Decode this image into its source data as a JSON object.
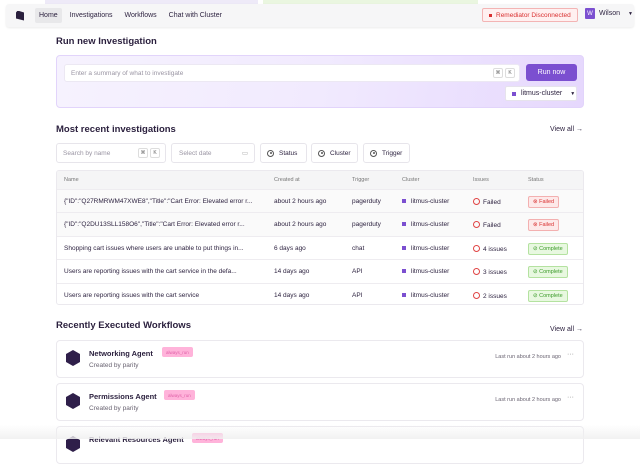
{
  "nav": {
    "items": [
      "Home",
      "Investigations",
      "Workflows",
      "Chat with Cluster"
    ],
    "active": "Home",
    "remediator_status": "Remediator Disconnected",
    "user_initial": "W",
    "user_name": "Wilson"
  },
  "run": {
    "title": "Run new Investigation",
    "placeholder": "Enter a summary of what to investigate",
    "kbd": [
      "⌘",
      "K"
    ],
    "button": "Run now",
    "cluster": "litmus-cluster"
  },
  "recent": {
    "title": "Most recent investigations",
    "view_all": "View all",
    "search_placeholder": "Search by name",
    "date_placeholder": "Select date",
    "filters": [
      "Status",
      "Cluster",
      "Trigger"
    ],
    "columns": [
      "Name",
      "Created at",
      "Trigger",
      "Cluster",
      "Issues",
      "Status"
    ],
    "rows": [
      {
        "name": "{\"ID\":\"Q27RMRWM47XWE8\",\"Title\":\"Cart Error: Elevated error r...",
        "created": "about 2 hours ago",
        "trigger": "pagerduty",
        "cluster": "litmus-cluster",
        "issues": "Failed",
        "status": "Failed"
      },
      {
        "name": "{\"ID\":\"Q2DU13SLL158O6\",\"Title\":\"Cart Error: Elevated error r...",
        "created": "about 2 hours ago",
        "trigger": "pagerduty",
        "cluster": "litmus-cluster",
        "issues": "Failed",
        "status": "Failed"
      },
      {
        "name": "Shopping cart issues where users are unable to put things in...",
        "created": "6 days ago",
        "trigger": "chat",
        "cluster": "litmus-cluster",
        "issues": "4 issues",
        "status": "Complete"
      },
      {
        "name": "Users are reporting issues with the cart service in the defa...",
        "created": "14 days ago",
        "trigger": "API",
        "cluster": "litmus-cluster",
        "issues": "3 issues",
        "status": "Complete"
      },
      {
        "name": "Users are reporting issues with the cart service",
        "created": "14 days ago",
        "trigger": "API",
        "cluster": "litmus-cluster",
        "issues": "2 issues",
        "status": "Complete"
      }
    ]
  },
  "workflows": {
    "title": "Recently Executed Workflows",
    "view_all": "View all",
    "items": [
      {
        "name": "Networking Agent",
        "tag": "always_run",
        "created_by": "Created by parity",
        "last_run": "Last run about 2 hours ago"
      },
      {
        "name": "Permissions Agent",
        "tag": "always_run",
        "created_by": "Created by parity",
        "last_run": "Last run about 2 hours ago"
      },
      {
        "name": "Relevant Resources Agent",
        "tag": "always_run"
      }
    ]
  },
  "colors": {
    "accent": "#7b4fd0",
    "failed": "#d93030",
    "complete": "#3a9a28",
    "tag": "#ffb3da"
  }
}
